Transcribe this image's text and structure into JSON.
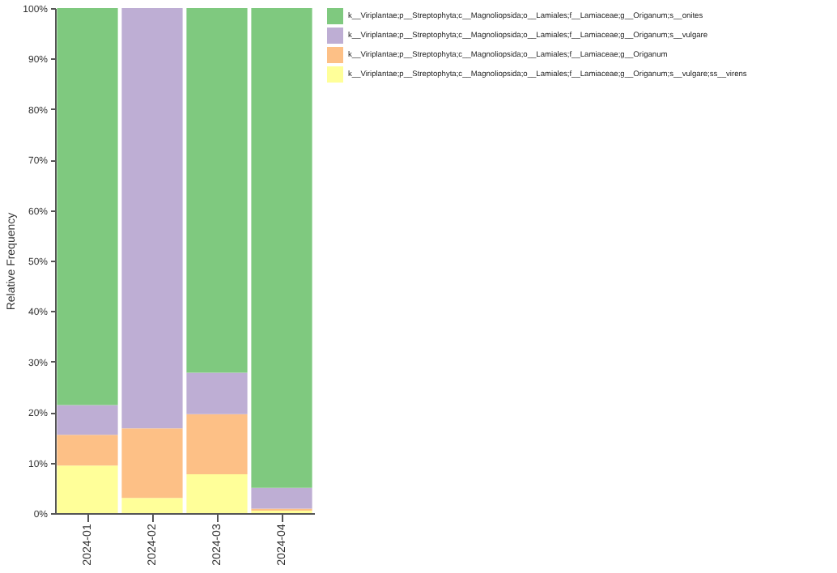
{
  "chart_data": {
    "type": "bar",
    "stacked": true,
    "ylabel": "Relative Frequency",
    "categories": [
      "2024-01",
      "2024-02",
      "2024-03",
      "2024-04"
    ],
    "series": [
      {
        "name": "k__Viriplantae;p__Streptophyta;c__Magnoliopsida;o__Lamiales;f__Lamiaceae;g__Origanum;s__vulgare;ss__virens",
        "color": "#ffff99",
        "values": [
          9.4,
          3.0,
          7.7,
          0.5
        ]
      },
      {
        "name": "k__Viriplantae;p__Streptophyta;c__Magnoliopsida;o__Lamiales;f__Lamiaceae;g__Origanum",
        "color": "#fdc086",
        "values": [
          6.1,
          13.8,
          11.9,
          0.4
        ]
      },
      {
        "name": "k__Viriplantae;p__Streptophyta;c__Magnoliopsida;o__Lamiales;f__Lamiaceae;g__Origanum;s__vulgare",
        "color": "#beaed4",
        "values": [
          5.9,
          83.2,
          8.2,
          4.1
        ]
      },
      {
        "name": "k__Viriplantae;p__Streptophyta;c__Magnoliopsida;o__Lamiales;f__Lamiaceae;g__Origanum;s__onites",
        "color": "#7fc97f",
        "values": [
          78.6,
          0,
          72.2,
          95.0
        ]
      }
    ],
    "ylim": [
      0,
      100
    ],
    "yticks": [
      {
        "value": 0,
        "label": "0%"
      },
      {
        "value": 10,
        "label": "10%"
      },
      {
        "value": 20,
        "label": "20%"
      },
      {
        "value": 30,
        "label": "30%"
      },
      {
        "value": 40,
        "label": "40%"
      },
      {
        "value": 50,
        "label": "50%"
      },
      {
        "value": 60,
        "label": "60%"
      },
      {
        "value": 70,
        "label": "70%"
      },
      {
        "value": 80,
        "label": "80%"
      },
      {
        "value": 90,
        "label": "90%"
      },
      {
        "value": 100,
        "label": "100%"
      }
    ],
    "grid": false,
    "legend": "top right"
  }
}
